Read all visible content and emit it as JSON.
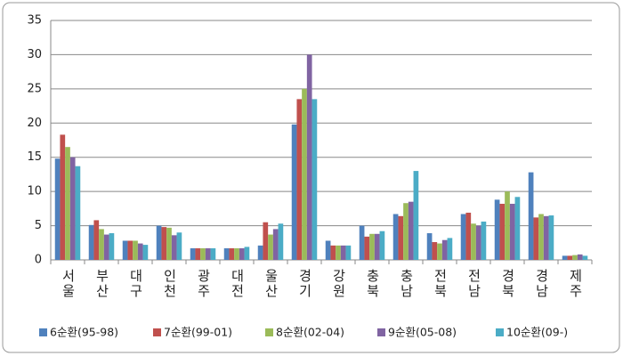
{
  "chart_data": {
    "type": "bar",
    "categories": [
      "서울",
      "부산",
      "대구",
      "인천",
      "광주",
      "대전",
      "울산",
      "경기",
      "강원",
      "충북",
      "충남",
      "전북",
      "전남",
      "경북",
      "경남",
      "제주"
    ],
    "series": [
      {
        "name": "6순환(95-98)",
        "color": "#4f81bd",
        "values": [
          14.8,
          5.1,
          2.8,
          5.0,
          1.7,
          1.7,
          2.1,
          19.8,
          2.8,
          5.0,
          6.7,
          3.9,
          6.7,
          8.8,
          12.8,
          0.6
        ]
      },
      {
        "name": "7순환(99-01)",
        "color": "#c0504d",
        "values": [
          18.3,
          5.8,
          2.8,
          4.8,
          1.7,
          1.7,
          5.5,
          23.5,
          2.1,
          3.4,
          6.4,
          2.6,
          6.9,
          8.2,
          6.2,
          0.6
        ]
      },
      {
        "name": "8순환(02-04)",
        "color": "#9bbb59",
        "values": [
          16.5,
          4.5,
          2.8,
          4.7,
          1.7,
          1.7,
          3.7,
          25.0,
          2.1,
          3.8,
          8.3,
          2.4,
          5.3,
          10.0,
          6.7,
          0.7
        ]
      },
      {
        "name": "9순환(05-08)",
        "color": "#8064a2",
        "values": [
          15.0,
          3.7,
          2.4,
          3.6,
          1.7,
          1.7,
          4.5,
          30.0,
          2.1,
          3.8,
          8.5,
          2.9,
          5.0,
          8.2,
          6.4,
          0.8
        ]
      },
      {
        "name": "10순환(09-)",
        "color": "#4bacc6",
        "values": [
          13.7,
          3.9,
          2.2,
          4.0,
          1.7,
          1.9,
          5.3,
          23.5,
          2.1,
          4.2,
          13.0,
          3.2,
          5.6,
          9.2,
          6.5,
          0.6
        ]
      }
    ],
    "ylim": [
      0,
      35
    ],
    "yticks": [
      0,
      5,
      10,
      15,
      20,
      25,
      30,
      35
    ],
    "grid": true,
    "legend": "bottom"
  }
}
